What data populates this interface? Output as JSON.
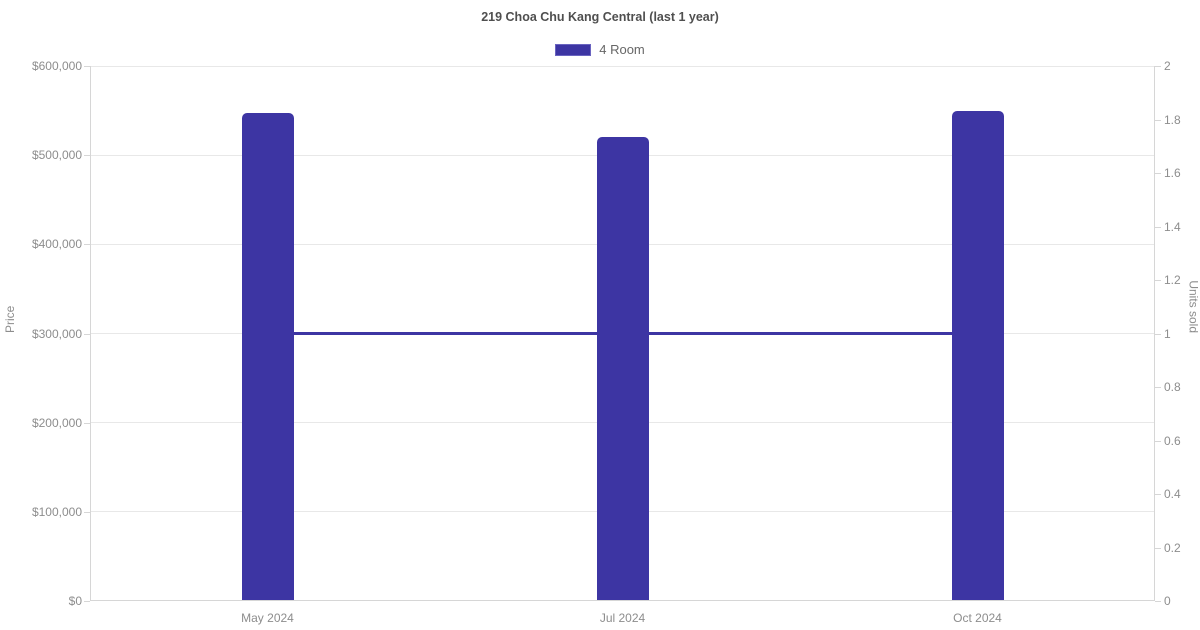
{
  "chart_data": {
    "type": "bar",
    "title": "219 Choa Chu Kang Central (last 1 year)",
    "categories": [
      "May 2024",
      "Jul 2024",
      "Oct 2024"
    ],
    "series": [
      {
        "name": "4 Room",
        "type": "bar",
        "axis": "left",
        "values": [
          547500,
          520000,
          549000
        ],
        "color": "#3d35a3"
      },
      {
        "name": "4 Room units sold",
        "type": "line",
        "axis": "right",
        "values": [
          1,
          1,
          1
        ],
        "color": "#3d35a3"
      }
    ],
    "legend": [
      {
        "label": "4 Room",
        "color": "#3d35a3"
      }
    ],
    "legend_position": "top",
    "grid": true,
    "left_axis": {
      "label": "Price",
      "min": 0,
      "max": 600000,
      "tick_step": 100000,
      "tick_labels": [
        "$0",
        "$100,000",
        "$200,000",
        "$300,000",
        "$400,000",
        "$500,000",
        "$600,000"
      ]
    },
    "right_axis": {
      "label": "Units sold",
      "min": 0,
      "max": 2,
      "tick_step": 0.2,
      "tick_labels": [
        "0",
        "0.2",
        "0.4",
        "0.6",
        "0.8",
        "1",
        "1.2",
        "1.4",
        "1.6",
        "1.8",
        "2"
      ]
    }
  },
  "styles": {
    "bar_color": "#3d35a3",
    "line_color": "#3d35a3",
    "grid_color": "#e8e8e8",
    "axis_color": "#d6d6d6",
    "tick_text_color": "#8d8d8d",
    "title_color": "#4f4f4f",
    "background": "#ffffff"
  }
}
